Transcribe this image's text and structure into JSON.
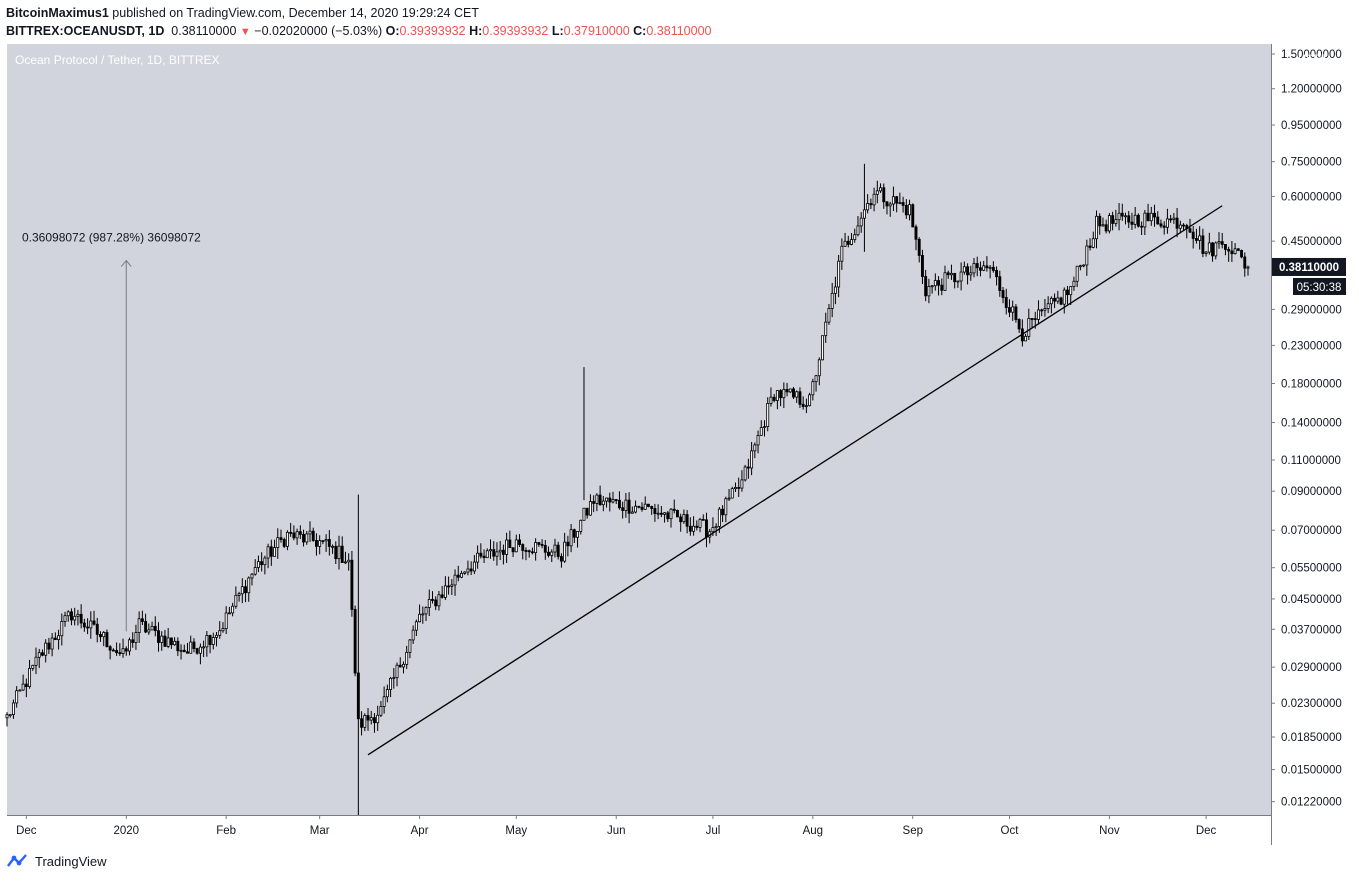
{
  "header": {
    "publisher": "BitcoinMaximus1",
    "published_text": "published on TradingView.com, December 14, 2020 19:29:24 CET",
    "symbol": "BITTREX:OCEANUSDT, 1D",
    "last": "0.38110000",
    "change": "−0.02020000 (−5.03%)",
    "o_label": "O:",
    "o": "0.39393932",
    "h_label": "H:",
    "h": "0.39393932",
    "l_label": "L:",
    "l": "0.37910000",
    "c_label": "C:",
    "c": "0.38110000"
  },
  "chart_title": "Ocean Protocol / Tether, 1D, BITTREX",
  "currency_label": "USDT",
  "price_tag": "0.38110000",
  "countdown_tag": "05:30:38",
  "measure_label": "0.36098072 (987.28%) 36098072",
  "footer_brand": "TradingView",
  "colors": {
    "plot_bg": "#d1d4dc",
    "candle": "#000000",
    "trendline": "#000000",
    "measure": "#787b86",
    "tag_bg": "#131722"
  },
  "chart_data": {
    "type": "candlestick",
    "scale": "log",
    "ylim": [
      0.0112,
      1.6
    ],
    "y_ticks": [
      "1.50000000",
      "1.20000000",
      "0.95000000",
      "0.75000000",
      "0.60000000",
      "0.45000000",
      "0.29000000",
      "0.23000000",
      "0.18000000",
      "0.14000000",
      "0.11000000",
      "0.09000000",
      "0.07000000",
      "0.05500000",
      "0.04500000",
      "0.03700000",
      "0.02900000",
      "0.02300000",
      "0.01850000",
      "0.01500000",
      "0.01220000"
    ],
    "y_tick_values": [
      1.5,
      1.2,
      0.95,
      0.75,
      0.6,
      0.45,
      0.29,
      0.23,
      0.18,
      0.14,
      0.11,
      0.09,
      0.07,
      0.055,
      0.045,
      0.037,
      0.029,
      0.023,
      0.0185,
      0.015,
      0.0122
    ],
    "x_ticks": [
      {
        "label": "Dec",
        "date": "2019-12-01"
      },
      {
        "label": "2020",
        "date": "2020-01-01"
      },
      {
        "label": "Feb",
        "date": "2020-02-01"
      },
      {
        "label": "Mar",
        "date": "2020-03-01"
      },
      {
        "label": "Apr",
        "date": "2020-04-01"
      },
      {
        "label": "May",
        "date": "2020-05-01"
      },
      {
        "label": "Jun",
        "date": "2020-06-01"
      },
      {
        "label": "Jul",
        "date": "2020-07-01"
      },
      {
        "label": "Aug",
        "date": "2020-08-01"
      },
      {
        "label": "Sep",
        "date": "2020-09-01"
      },
      {
        "label": "Oct",
        "date": "2020-10-01"
      },
      {
        "label": "Nov",
        "date": "2020-11-01"
      },
      {
        "label": "Dec",
        "date": "2020-12-01"
      }
    ],
    "x_range": [
      "2019-11-25",
      "2020-12-14"
    ],
    "price_keypoints": [
      {
        "date": "2019-11-25",
        "price": 0.021
      },
      {
        "date": "2019-12-05",
        "price": 0.031
      },
      {
        "date": "2019-12-15",
        "price": 0.041
      },
      {
        "date": "2019-12-25",
        "price": 0.035
      },
      {
        "date": "2019-12-31",
        "price": 0.031
      },
      {
        "date": "2020-01-05",
        "price": 0.038
      },
      {
        "date": "2020-01-20",
        "price": 0.032
      },
      {
        "date": "2020-01-30",
        "price": 0.037
      },
      {
        "date": "2020-02-10",
        "price": 0.055
      },
      {
        "date": "2020-02-20",
        "price": 0.068
      },
      {
        "date": "2020-03-01",
        "price": 0.065
      },
      {
        "date": "2020-03-10",
        "price": 0.058
      },
      {
        "date": "2020-03-13",
        "price": 0.02
      },
      {
        "date": "2020-03-20",
        "price": 0.022
      },
      {
        "date": "2020-04-01",
        "price": 0.04
      },
      {
        "date": "2020-04-15",
        "price": 0.055
      },
      {
        "date": "2020-05-01",
        "price": 0.065
      },
      {
        "date": "2020-05-15",
        "price": 0.06
      },
      {
        "date": "2020-05-25",
        "price": 0.085
      },
      {
        "date": "2020-06-10",
        "price": 0.081
      },
      {
        "date": "2020-06-30",
        "price": 0.07
      },
      {
        "date": "2020-07-10",
        "price": 0.095
      },
      {
        "date": "2020-07-20",
        "price": 0.17
      },
      {
        "date": "2020-07-31",
        "price": 0.16
      },
      {
        "date": "2020-08-10",
        "price": 0.42
      },
      {
        "date": "2020-08-20",
        "price": 0.62
      },
      {
        "date": "2020-08-31",
        "price": 0.55
      },
      {
        "date": "2020-09-05",
        "price": 0.33
      },
      {
        "date": "2020-09-15",
        "price": 0.36
      },
      {
        "date": "2020-09-25",
        "price": 0.38
      },
      {
        "date": "2020-10-05",
        "price": 0.25
      },
      {
        "date": "2020-10-20",
        "price": 0.33
      },
      {
        "date": "2020-10-28",
        "price": 0.5
      },
      {
        "date": "2020-11-10",
        "price": 0.52
      },
      {
        "date": "2020-11-25",
        "price": 0.51
      },
      {
        "date": "2020-12-01",
        "price": 0.42
      },
      {
        "date": "2020-12-07",
        "price": 0.45
      },
      {
        "date": "2020-12-14",
        "price": 0.381
      }
    ],
    "extreme_wicks": [
      {
        "date": "2020-03-13",
        "high": 0.088,
        "low": 0.0112
      },
      {
        "date": "2020-05-22",
        "high": 0.2,
        "low": 0.085
      },
      {
        "date": "2020-08-17",
        "high": 0.74,
        "low": 0.42
      }
    ],
    "trendline": [
      {
        "date": "2020-03-16",
        "price": 0.0165
      },
      {
        "date": "2020-12-06",
        "price": 0.565
      }
    ],
    "measure": {
      "date": "2020-01-01",
      "from": 0.0365,
      "to": 0.397
    }
  }
}
